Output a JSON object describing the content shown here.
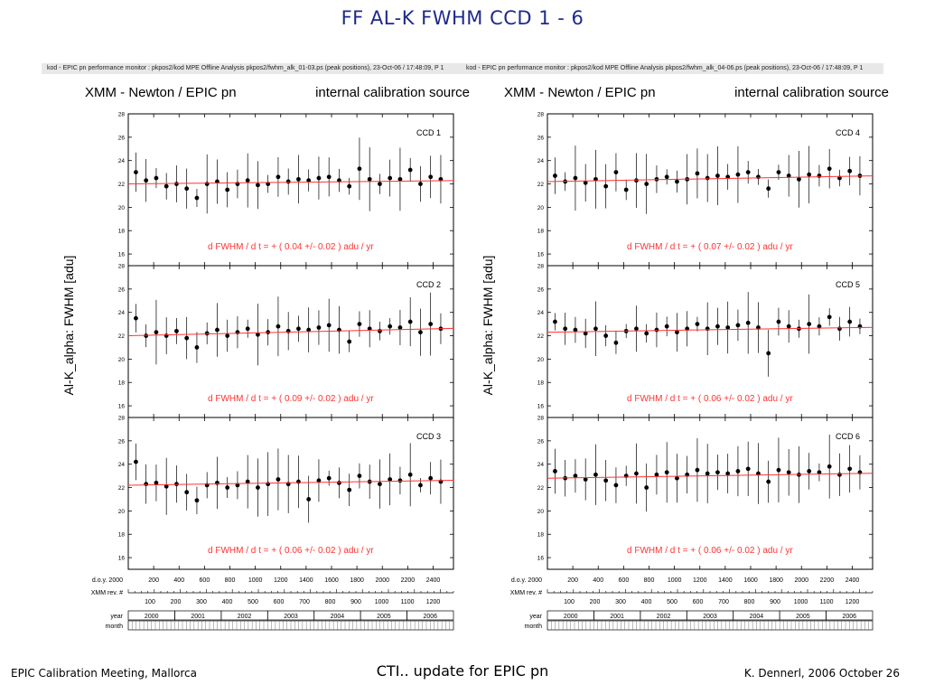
{
  "slide": {
    "title": "FF   AL-K   FWHM   CCD 1 - 6",
    "footer_left": "EPIC Calibration Meeting, Mallorca",
    "footer_center": "CTI.. update for EPIC pn",
    "footer_right": "K. Dennerl, 2006 October 26"
  },
  "colors": {
    "title": "#1f2a8a",
    "fit": "#ff3333",
    "points": "#000000"
  },
  "panels": [
    {
      "statusbar": "kod - EPIC pn performance monitor : pkpos2/kod     MPE   Offline  Analysis   pkpos2/fwhm_alk_01-03.ps (peak positions), 23-Oct-06 / 17:48:09, P   1",
      "title": "XMM - Newton  /  EPIC pn",
      "source": "internal calibration source",
      "ylabel": "Al-K_alpha:  FWHM  [adu]"
    },
    {
      "statusbar": "kod - EPIC pn performance monitor : pkpos2/kod     MPE   Offline  Analysis   pkpos2/fwhm_alk_04-06.ps (peak positions), 23-Oct-06 / 17:48:09, P   1",
      "title": "XMM - Newton  /  EPIC pn",
      "source": "internal calibration source",
      "ylabel": "Al-K_alpha:  FWHM  [adu]"
    }
  ],
  "axes": {
    "doy_label": "d.o.y. 2000",
    "doy_ticks": [
      "200",
      "400",
      "600",
      "800",
      "1000",
      "1200",
      "1400",
      "1600",
      "1800",
      "2000",
      "2200",
      "2400"
    ],
    "rev_label": "XMM rev. #",
    "rev_ticks": [
      "100",
      "200",
      "300",
      "400",
      "500",
      "600",
      "700",
      "800",
      "900",
      "1000",
      "1100",
      "1200"
    ],
    "year_label": "year",
    "years": [
      "2000",
      "2001",
      "2002",
      "2003",
      "2004",
      "2005",
      "2006"
    ],
    "month_label": "month",
    "y_ticks": [
      "16",
      "18",
      "20",
      "22",
      "24",
      "26",
      "28"
    ]
  },
  "chart_data": [
    {
      "type": "scatter",
      "ccd_label": "CCD 1",
      "x_unit": "d.o.y. 2000",
      "xlim": [
        0,
        2560
      ],
      "ylim": [
        15,
        28
      ],
      "fit_baseline": 22.0,
      "annotation": "d FWHM / d t = + ( 0.04 +/- 0.02 )  adu / yr",
      "x": [
        60,
        140,
        220,
        300,
        380,
        460,
        540,
        620,
        700,
        780,
        860,
        940,
        1020,
        1100,
        1180,
        1260,
        1340,
        1420,
        1500,
        1580,
        1660,
        1740,
        1820,
        1900,
        1980,
        2060,
        2140,
        2220,
        2300,
        2380,
        2460
      ],
      "y": [
        23.0,
        22.3,
        22.5,
        21.8,
        22.0,
        21.6,
        20.8,
        22.0,
        22.2,
        21.5,
        22.0,
        22.3,
        21.9,
        22.0,
        22.6,
        22.2,
        22.4,
        22.3,
        22.5,
        22.6,
        22.3,
        21.8,
        23.3,
        22.4,
        22.0,
        22.5,
        22.4,
        23.2,
        22.0,
        22.6,
        22.4
      ]
    },
    {
      "type": "scatter",
      "ccd_label": "CCD 2",
      "x_unit": "d.o.y. 2000",
      "xlim": [
        0,
        2560
      ],
      "ylim": [
        15,
        28
      ],
      "fit_baseline": 22.0,
      "annotation": "d FWHM / d t = + ( 0.09 +/- 0.02 )  adu / yr",
      "x": [
        60,
        140,
        220,
        300,
        380,
        460,
        540,
        620,
        700,
        780,
        860,
        940,
        1020,
        1100,
        1180,
        1260,
        1340,
        1420,
        1500,
        1580,
        1660,
        1740,
        1820,
        1900,
        1980,
        2060,
        2140,
        2220,
        2300,
        2380,
        2460
      ],
      "y": [
        23.5,
        22.0,
        22.3,
        22.0,
        22.4,
        21.8,
        21.0,
        22.2,
        22.5,
        22.0,
        22.3,
        22.6,
        22.1,
        22.3,
        22.8,
        22.4,
        22.6,
        22.5,
        22.7,
        22.9,
        22.5,
        21.5,
        23.0,
        22.6,
        22.4,
        22.8,
        22.7,
        23.2,
        22.3,
        23.0,
        22.6
      ]
    },
    {
      "type": "scatter",
      "ccd_label": "CCD 3",
      "x_unit": "d.o.y. 2000",
      "xlim": [
        0,
        2560
      ],
      "ylim": [
        15,
        28
      ],
      "fit_baseline": 22.2,
      "annotation": "d FWHM / d t = + ( 0.06 +/- 0.02 )  adu / yr",
      "x": [
        60,
        140,
        220,
        300,
        380,
        460,
        540,
        620,
        700,
        780,
        860,
        940,
        1020,
        1100,
        1180,
        1260,
        1340,
        1420,
        1500,
        1580,
        1660,
        1740,
        1820,
        1900,
        1980,
        2060,
        2140,
        2220,
        2300,
        2380,
        2460
      ],
      "y": [
        24.2,
        22.3,
        22.4,
        22.1,
        22.3,
        21.6,
        20.9,
        22.2,
        22.4,
        22.0,
        22.2,
        22.5,
        22.0,
        22.3,
        22.7,
        22.3,
        22.5,
        21.0,
        22.6,
        22.8,
        22.4,
        21.8,
        23.0,
        22.5,
        22.3,
        22.7,
        22.6,
        23.1,
        22.2,
        22.8,
        22.5
      ]
    },
    {
      "type": "scatter",
      "ccd_label": "CCD 4",
      "x_unit": "d.o.y. 2000",
      "xlim": [
        0,
        2560
      ],
      "ylim": [
        15,
        28
      ],
      "fit_baseline": 22.2,
      "annotation": "d FWHM / d t = + ( 0.07 +/- 0.02 )  adu / yr",
      "x": [
        60,
        140,
        220,
        300,
        380,
        460,
        540,
        620,
        700,
        780,
        860,
        940,
        1020,
        1100,
        1180,
        1260,
        1340,
        1420,
        1500,
        1580,
        1660,
        1740,
        1820,
        1900,
        1980,
        2060,
        2140,
        2220,
        2300,
        2380,
        2460
      ],
      "y": [
        22.7,
        22.2,
        22.5,
        22.1,
        22.4,
        21.8,
        23.0,
        21.5,
        22.3,
        22.0,
        22.4,
        22.6,
        22.2,
        22.4,
        22.9,
        22.5,
        22.7,
        22.6,
        22.8,
        23.0,
        22.6,
        21.6,
        23.0,
        22.7,
        22.4,
        22.8,
        22.7,
        23.3,
        22.5,
        23.1,
        22.7
      ]
    },
    {
      "type": "scatter",
      "ccd_label": "CCD 5",
      "x_unit": "d.o.y. 2000",
      "xlim": [
        0,
        2560
      ],
      "ylim": [
        15,
        28
      ],
      "fit_baseline": 22.3,
      "annotation": "d FWHM / d t = + ( 0.06 +/- 0.02 )  adu / yr",
      "x": [
        60,
        140,
        220,
        300,
        380,
        460,
        540,
        620,
        700,
        780,
        860,
        940,
        1020,
        1100,
        1180,
        1260,
        1340,
        1420,
        1500,
        1580,
        1660,
        1740,
        1820,
        1900,
        1980,
        2060,
        2140,
        2220,
        2300,
        2380,
        2460
      ],
      "y": [
        23.2,
        22.6,
        22.5,
        22.2,
        22.6,
        22.0,
        21.4,
        22.4,
        22.6,
        22.2,
        22.5,
        22.8,
        22.3,
        22.6,
        23.0,
        22.6,
        22.8,
        22.7,
        22.9,
        23.1,
        22.7,
        20.5,
        23.2,
        22.8,
        22.6,
        23.0,
        22.8,
        23.6,
        22.6,
        23.2,
        22.8
      ]
    },
    {
      "type": "scatter",
      "ccd_label": "CCD 6",
      "x_unit": "d.o.y. 2000",
      "xlim": [
        0,
        2560
      ],
      "ylim": [
        15,
        28
      ],
      "fit_baseline": 22.8,
      "annotation": "d FWHM / d t = + ( 0.06 +/- 0.02 )  adu / yr",
      "x": [
        60,
        140,
        220,
        300,
        380,
        460,
        540,
        620,
        700,
        780,
        860,
        940,
        1020,
        1100,
        1180,
        1260,
        1340,
        1420,
        1500,
        1580,
        1660,
        1740,
        1820,
        1900,
        1980,
        2060,
        2140,
        2220,
        2300,
        2380,
        2460
      ],
      "y": [
        23.4,
        22.8,
        23.0,
        22.7,
        23.1,
        22.6,
        22.2,
        23.0,
        23.2,
        22.0,
        23.1,
        23.3,
        22.8,
        23.1,
        23.5,
        23.2,
        23.3,
        23.2,
        23.4,
        23.6,
        23.2,
        22.5,
        23.5,
        23.3,
        23.1,
        23.4,
        23.3,
        23.8,
        23.1,
        23.6,
        23.3
      ]
    }
  ]
}
